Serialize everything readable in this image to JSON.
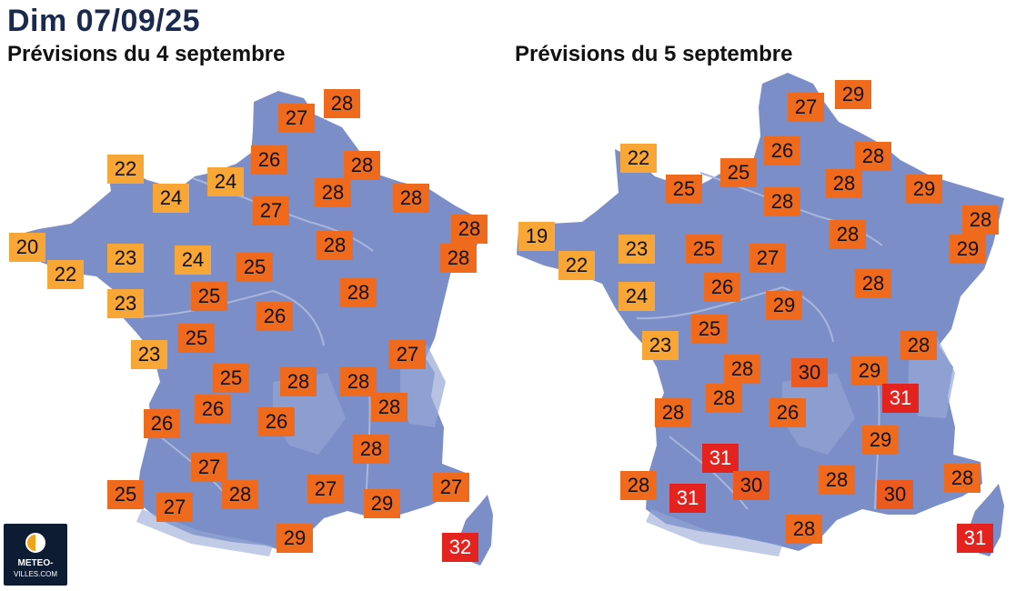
{
  "header": {
    "date": "Dim 07/09/25"
  },
  "maps": [
    {
      "title": "Prévisions du 4 septembre",
      "temperatures": [
        28,
        27,
        26,
        28,
        22,
        24,
        24,
        28,
        28,
        27,
        28,
        20,
        28,
        22,
        23,
        24,
        25,
        28,
        23,
        25,
        26,
        28,
        25,
        23,
        27,
        25,
        28,
        28,
        26,
        26,
        28,
        26,
        28,
        27,
        25,
        27,
        28,
        27,
        29,
        27,
        29,
        32
      ]
    },
    {
      "title": "Prévisions du 5 septembre",
      "temperatures": [
        29,
        27,
        26,
        22,
        28,
        25,
        25,
        28,
        29,
        28,
        28,
        19,
        23,
        25,
        27,
        28,
        22,
        29,
        26,
        24,
        28,
        29,
        25,
        28,
        23,
        28,
        30,
        29,
        28,
        28,
        31,
        26,
        29,
        31,
        28,
        28,
        30,
        28,
        31,
        30,
        28,
        31
      ]
    }
  ],
  "colors": {
    "map_fill": "#7b8ec8",
    "map_river": "#a8b6dc",
    "temp_19_24": "#f8a636",
    "temp_25_29": "#f06a1e",
    "temp_30": "#ec5a1f",
    "temp_31_32": "#e4231f"
  },
  "logo": {
    "line1": "METEO-",
    "line2": "VILLES.COM"
  }
}
